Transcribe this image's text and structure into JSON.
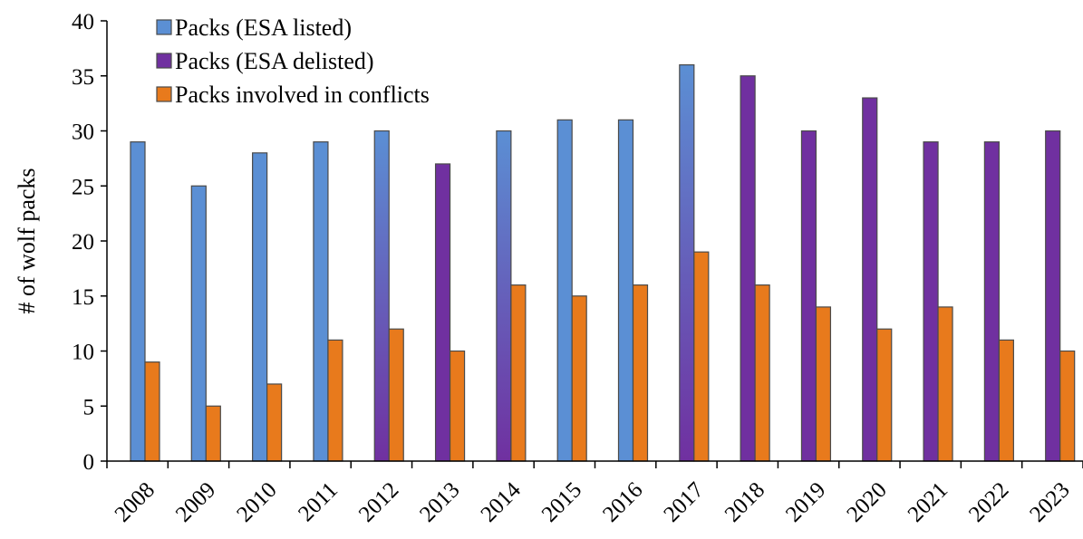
{
  "chart_data": {
    "type": "bar",
    "title": "",
    "xlabel": "",
    "ylabel": "# of wolf packs",
    "ylim": [
      0,
      40
    ],
    "yticks": [
      0,
      5,
      10,
      15,
      20,
      25,
      30,
      35,
      40
    ],
    "grid": false,
    "legend_position": "top-left",
    "categories": [
      "2008",
      "2009",
      "2010",
      "2011",
      "2012",
      "2013",
      "2014",
      "2015",
      "2016",
      "2017",
      "2018",
      "2019",
      "2020",
      "2021",
      "2022",
      "2023"
    ],
    "series": [
      {
        "name": "Packs (ESA listed)",
        "color": "#5b8fd4",
        "values": [
          29,
          25,
          28,
          29,
          null,
          null,
          null,
          31,
          31,
          null,
          null,
          null,
          null,
          null,
          null,
          null
        ]
      },
      {
        "name": "Packs (ESA delisted)",
        "color": "#7030a0",
        "values": [
          null,
          null,
          null,
          null,
          30,
          27,
          null,
          null,
          null,
          36,
          35,
          30,
          33,
          29,
          29,
          30
        ]
      },
      {
        "name": "Packs involved in conflicts",
        "color": "#e87a1c",
        "values": [
          9,
          5,
          7,
          11,
          12,
          10,
          16,
          15,
          16,
          19,
          16,
          14,
          12,
          14,
          11,
          10
        ]
      }
    ],
    "mixed_bars": [
      {
        "category": "2012",
        "value": 30,
        "from_series": "Packs (ESA listed)",
        "to_series": "Packs (ESA delisted)"
      },
      {
        "category": "2014",
        "value": 30,
        "from_series": "Packs (ESA listed)",
        "to_series": "Packs (ESA delisted)"
      },
      {
        "category": "2017",
        "value": 36,
        "from_series": "Packs (ESA listed)",
        "to_series": "Packs (ESA delisted)"
      }
    ]
  }
}
